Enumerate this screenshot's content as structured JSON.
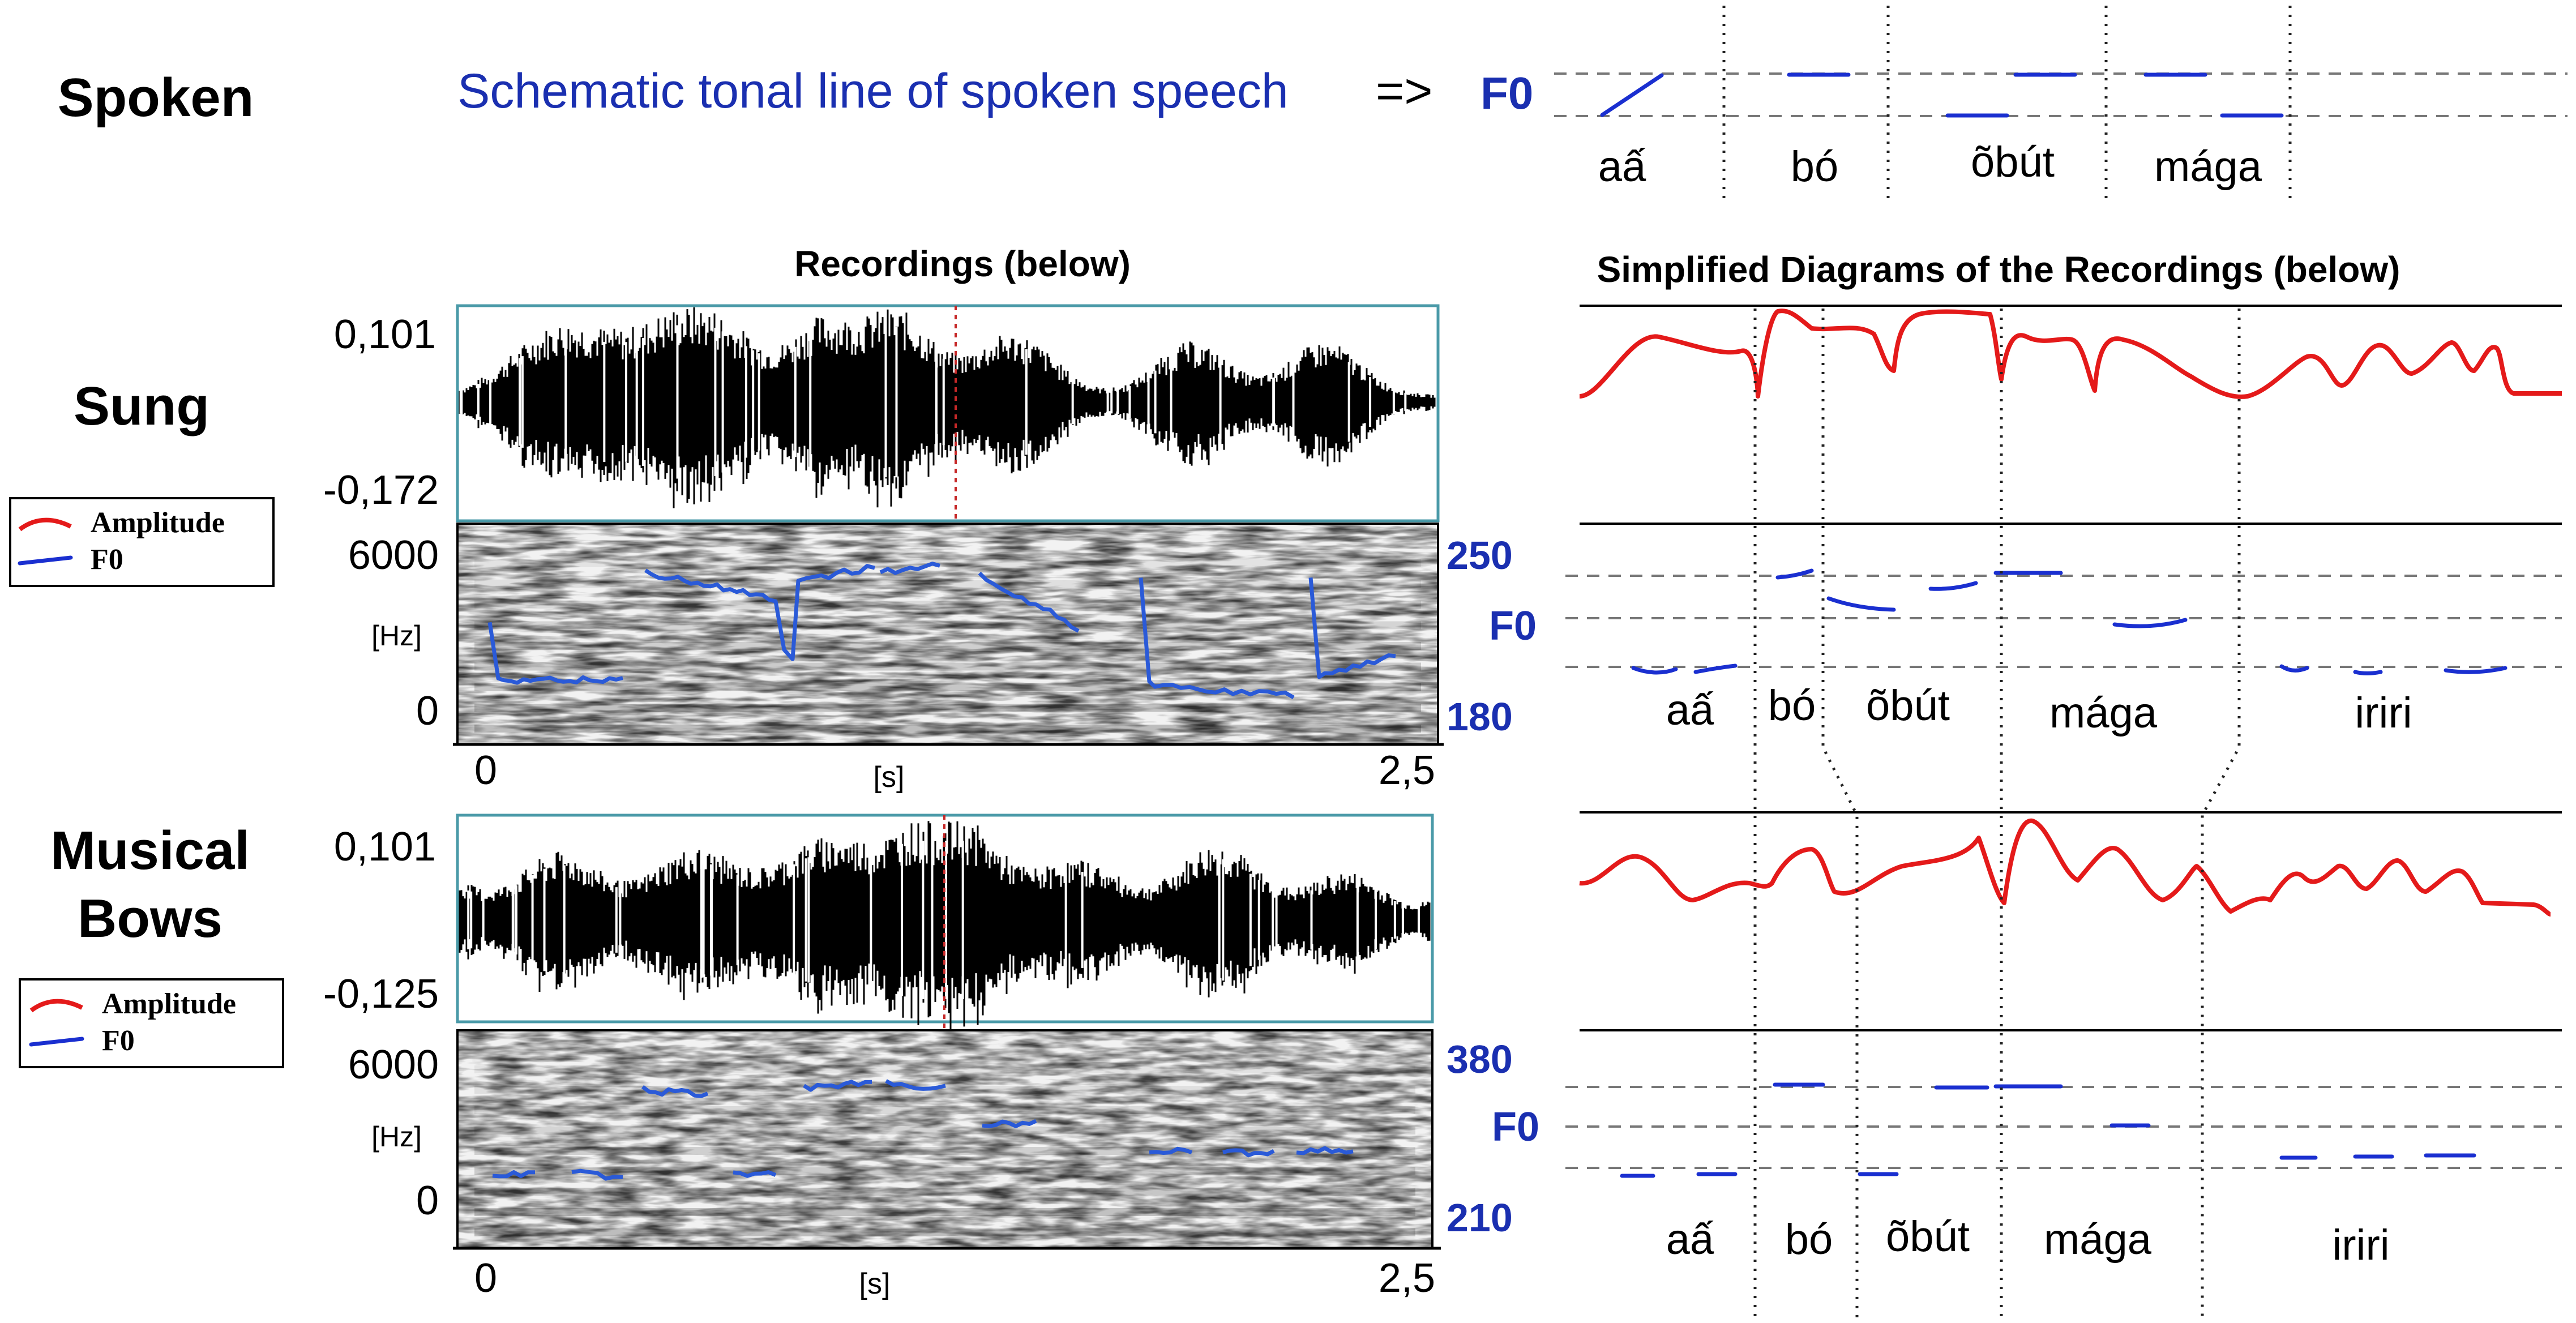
{
  "rows": {
    "spoken": "Spoken",
    "sung": "Sung",
    "bows_line1": "Musical",
    "bows_line2": "Bows"
  },
  "spoken_caption": {
    "text": "Schematic tonal line of spoken speech",
    "arrow": "=>"
  },
  "headers": {
    "recordings": "Recordings (below)",
    "diagrams": "Simplified Diagrams of the Recordings (below)"
  },
  "f0_label": "F0",
  "legend": {
    "amplitude": "Amplitude",
    "f0": "F0"
  },
  "colors": {
    "amplitude": "#e41a1a",
    "f0": "#1a2fd0",
    "caption": "#1a2fb0"
  },
  "sung_panel": {
    "wave_max": "0,101",
    "wave_min": "-0,172",
    "freq_max": "6000",
    "freq_unit": "[Hz]",
    "freq_min": "0",
    "f0_high": "250",
    "f0_low": "180",
    "time_start": "0",
    "time_unit": "[s]",
    "time_end": "2,5"
  },
  "bows_panel": {
    "wave_max": "0,101",
    "wave_min": "-0,125",
    "freq_max": "6000",
    "freq_unit": "[Hz]",
    "freq_min": "0",
    "f0_high": "380",
    "f0_low": "210",
    "time_start": "0",
    "time_unit": "[s]",
    "time_end": "2,5"
  },
  "syllables": {
    "spoken": [
      "aấ",
      "bó",
      "õbút",
      "mága"
    ],
    "sung": [
      "aấ",
      "bó",
      "õbút",
      "mága",
      "iriri"
    ],
    "bows": [
      "aấ",
      "bó",
      "õbút",
      "mága",
      "iriri"
    ]
  }
}
